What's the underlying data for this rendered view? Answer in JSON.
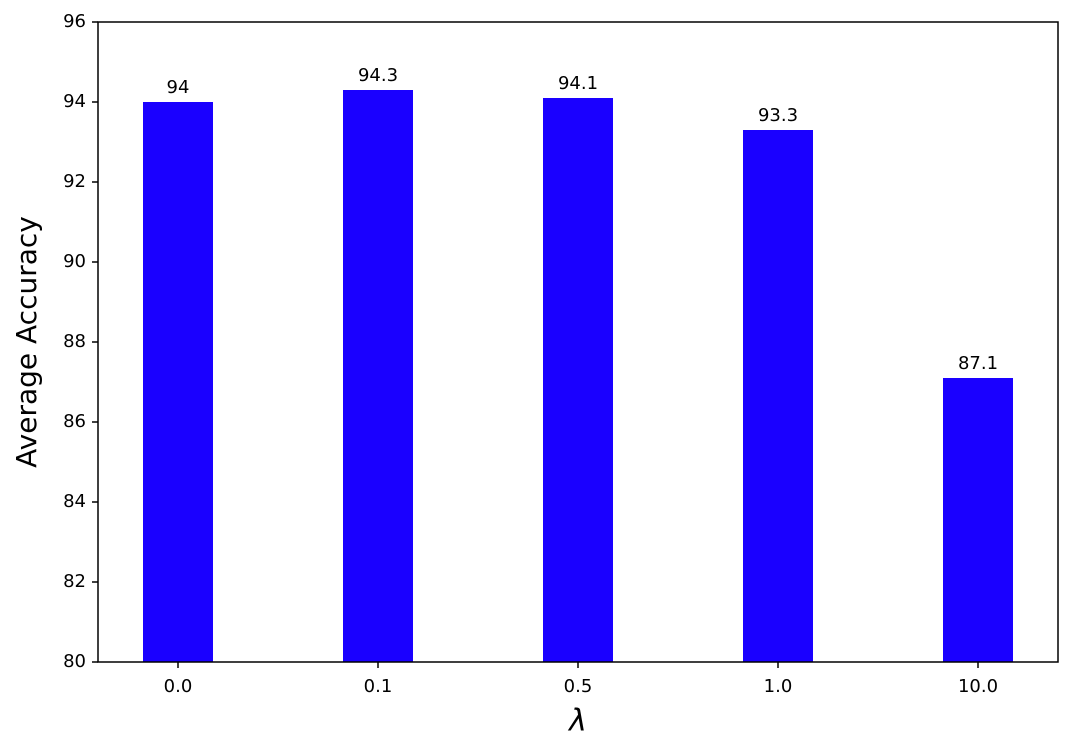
{
  "chart_data": {
    "type": "bar",
    "categories": [
      "0.0",
      "0.1",
      "0.5",
      "1.0",
      "10.0"
    ],
    "values": [
      94,
      94.3,
      94.1,
      93.3,
      87.1
    ],
    "color": "#1a00ff",
    "x_label": "λ",
    "y_label": "Average Accuracy",
    "ylim": [
      80,
      96
    ],
    "yticks": [
      80,
      82,
      84,
      86,
      88,
      90,
      92,
      94,
      96
    ],
    "grid": false
  }
}
